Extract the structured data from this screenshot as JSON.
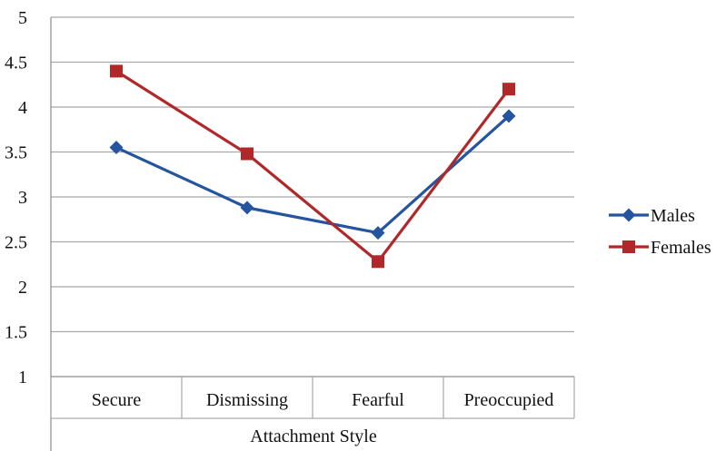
{
  "chart_data": {
    "type": "line",
    "title": "",
    "xlabel": "Attachment Style",
    "ylabel": "",
    "categories": [
      "Secure",
      "Dismissing",
      "Fearful",
      "Preoccupied"
    ],
    "ylim": [
      1,
      5
    ],
    "yticks": [
      "1",
      "1.5",
      "2",
      "2.5",
      "3",
      "3.5",
      "4",
      "4.5",
      "5"
    ],
    "grid": true,
    "legend_position": "right",
    "series": [
      {
        "name": "Males",
        "values": [
          3.55,
          2.88,
          2.6,
          3.9
        ],
        "color": "#2554a0",
        "marker": "diamond"
      },
      {
        "name": "Females",
        "values": [
          4.4,
          3.48,
          2.28,
          4.2
        ],
        "color": "#b0282a",
        "marker": "square"
      }
    ]
  }
}
